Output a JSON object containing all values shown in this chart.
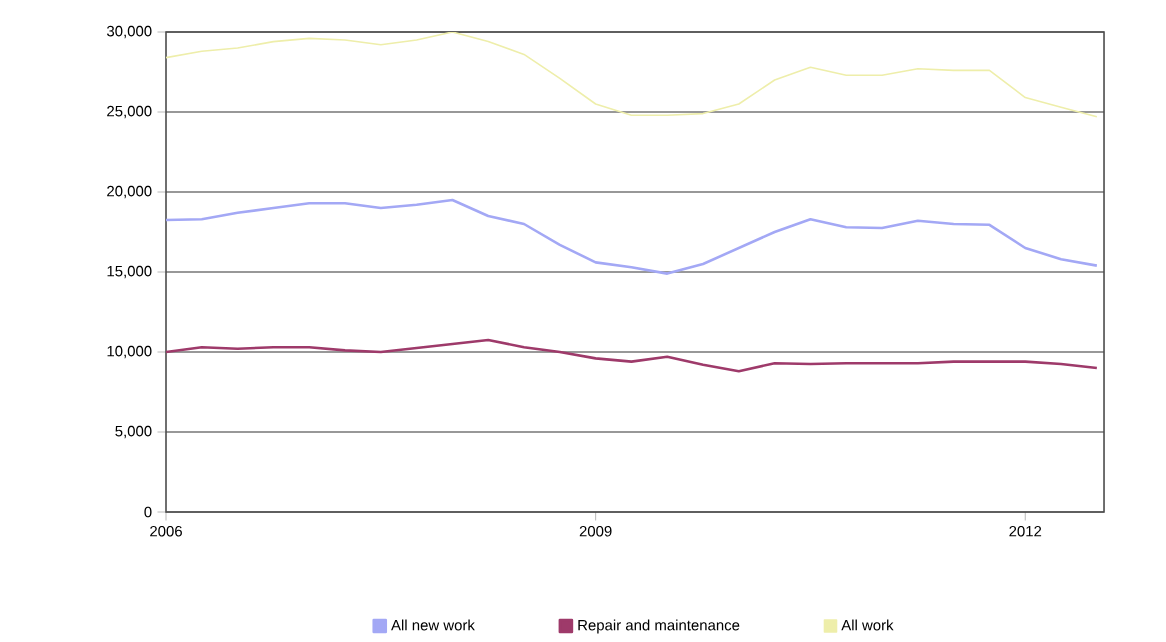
{
  "chart_data": {
    "type": "line",
    "x": [
      2006,
      2006.25,
      2006.5,
      2006.75,
      2007,
      2007.25,
      2007.5,
      2007.75,
      2008,
      2008.25,
      2008.5,
      2008.75,
      2009,
      2009.25,
      2009.5,
      2009.75,
      2010,
      2010.25,
      2010.5,
      2010.75,
      2011,
      2011.25,
      2011.5,
      2011.75,
      2012,
      2012.25,
      2012.5
    ],
    "series": [
      {
        "name": "All new work",
        "color": "#a3a8f5",
        "values": [
          18250,
          18300,
          18700,
          19000,
          19300,
          19300,
          19000,
          19200,
          19500,
          18500,
          18000,
          16700,
          15600,
          15300,
          14900,
          15500,
          16500,
          17500,
          18300,
          17800,
          17750,
          18200,
          18000,
          17950,
          16500,
          15800,
          15400
        ]
      },
      {
        "name": "Repair and maintenance",
        "color": "#9e3a6a",
        "values": [
          10000,
          10300,
          10200,
          10300,
          10300,
          10100,
          10000,
          10250,
          10500,
          10750,
          10300,
          10000,
          9600,
          9400,
          9700,
          9200,
          8800,
          9300,
          9250,
          9300,
          9300,
          9300,
          9400,
          9400,
          9400,
          9250,
          9000
        ]
      },
      {
        "name": "All work",
        "color": "#eeeeaa",
        "values": [
          28400,
          28800,
          29000,
          29400,
          29600,
          29500,
          29200,
          29500,
          30000,
          29400,
          28600,
          27100,
          25500,
          24800,
          24800,
          24900,
          25500,
          27000,
          27800,
          27300,
          27300,
          27700,
          27600,
          27600,
          25900,
          25300,
          24700
        ]
      }
    ],
    "xlim": [
      2006,
      2012.55
    ],
    "ylim": [
      0,
      30000
    ],
    "xticks": [
      2006,
      2009,
      2012
    ],
    "yticks": [
      {
        "value": 0,
        "label": "0"
      },
      {
        "value": 5000,
        "label": "5,000"
      },
      {
        "value": 10000,
        "label": "10,000"
      },
      {
        "value": 15000,
        "label": "15,000"
      },
      {
        "value": 20000,
        "label": "20,000"
      },
      {
        "value": 25000,
        "label": "25,000"
      },
      {
        "value": 30000,
        "label": "30,000"
      }
    ],
    "grid": "y",
    "legend": "bottom"
  }
}
